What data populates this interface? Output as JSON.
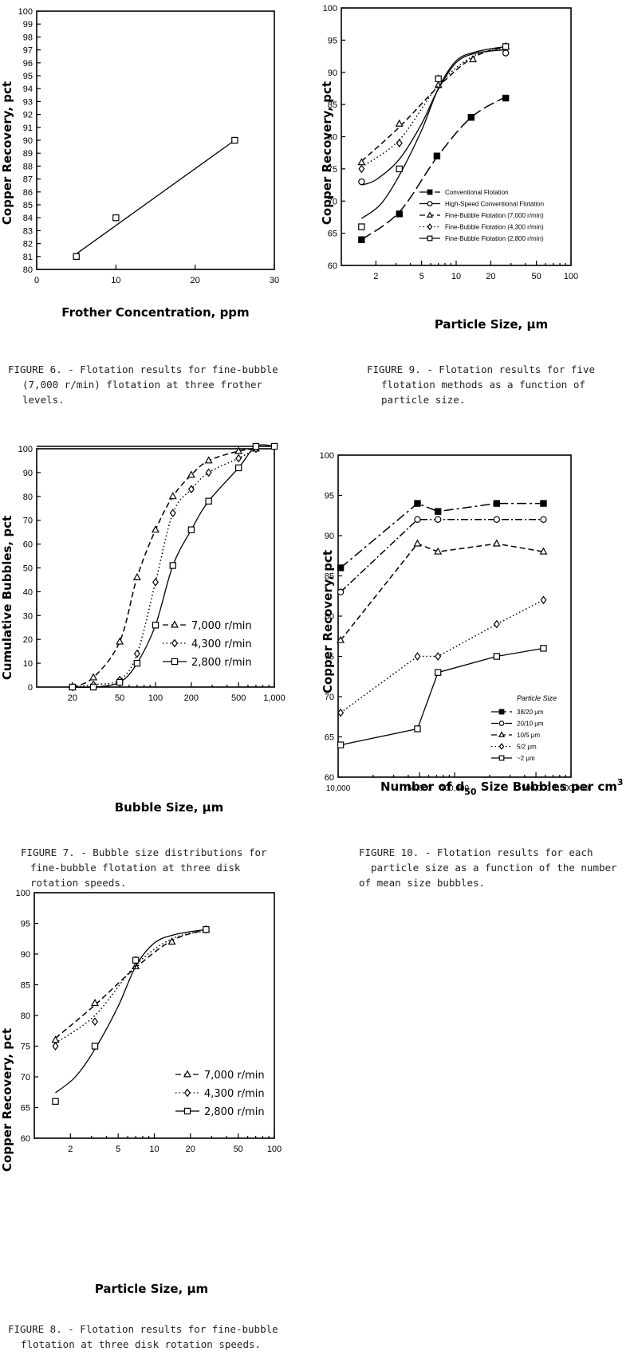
{
  "colors": {
    "ink": "#000000",
    "caption": "#222222",
    "background": "#ffffff"
  },
  "captions": {
    "fig6": [
      "FIGURE 6. - Flotation results for fine-bubble",
      "(7,000 r/min) flotation at three frother",
      "levels."
    ],
    "fig9": [
      "FIGURE 9. - Flotation results for five",
      "flotation methods as a function of",
      "particle size."
    ],
    "fig7": [
      "FIGURE 7. - Bubble size distributions for",
      "fine-bubble flotation at three disk",
      "rotation speeds."
    ],
    "fig10": [
      "FIGURE 10. - Flotation results for each",
      "particle size as a function of the number",
      "of mean size bubbles."
    ],
    "fig8": [
      "FIGURE 8. - Flotation results for fine-bubble",
      "flotation at three disk rotation speeds."
    ]
  },
  "chart_data": [
    {
      "id": "fig6",
      "type": "line",
      "xlabel": "Frother Concentration, ppm",
      "ylabel": "Copper Recovery, pct",
      "xlim": [
        0,
        30
      ],
      "ylim": [
        80,
        100
      ],
      "xticks": [
        0,
        10,
        20,
        30
      ],
      "xtick_labels": [
        "0",
        "10",
        "20",
        "30"
      ],
      "yticks": [
        80,
        81,
        82,
        83,
        84,
        85,
        86,
        87,
        88,
        89,
        90,
        91,
        92,
        93,
        94,
        95,
        96,
        97,
        98,
        99,
        100
      ],
      "ytick_labels": [
        "80",
        "81",
        "82",
        "83",
        "84",
        "85",
        "86",
        "87",
        "88",
        "89",
        "90",
        "91",
        "92",
        "93",
        "94",
        "95",
        "96",
        "97",
        "98",
        "99",
        "100"
      ],
      "series": [
        {
          "marker": "square-open",
          "line": "solid",
          "x": [
            5,
            10,
            25
          ],
          "y": [
            81,
            84,
            90
          ],
          "fit": [
            [
              5,
              81.2
            ],
            [
              25,
              90
            ]
          ]
        }
      ]
    },
    {
      "id": "fig9",
      "type": "line",
      "xscale": "log",
      "xlabel": "Particle Size, μm",
      "ylabel": "Copper Recovery, pct",
      "xlim": [
        1,
        100
      ],
      "ylim": [
        60,
        100
      ],
      "xticks": [
        2,
        5,
        10,
        20,
        50,
        100
      ],
      "xtick_labels": [
        "2",
        "5",
        "10",
        "20",
        "50",
        "100"
      ],
      "yticks": [
        60,
        65,
        70,
        75,
        80,
        85,
        90,
        95,
        100
      ],
      "ytick_labels": [
        "60",
        "65",
        "70",
        "75",
        "80",
        "85",
        "90",
        "95",
        "100"
      ],
      "legend": "bottom-right",
      "series": [
        {
          "name": "Conventional Flotation",
          "marker": "square-filled",
          "line": "longdash",
          "x": [
            1.5,
            3.2,
            6.8,
            13.5,
            27
          ],
          "y": [
            64,
            68,
            77,
            83,
            86
          ],
          "curve": [
            [
              1.5,
              64
            ],
            [
              3.2,
              68.3
            ],
            [
              6.8,
              76.8
            ],
            [
              13.5,
              83
            ],
            [
              27,
              86.2
            ]
          ]
        },
        {
          "name": "High-Speed Conventional Flotation",
          "marker": "circle-open",
          "line": "solid",
          "x": [
            1.5,
            27
          ],
          "y": [
            73,
            93
          ],
          "curve": [
            [
              1.5,
              72.5
            ],
            [
              2,
              73.3
            ],
            [
              3.2,
              76.5
            ],
            [
              5,
              82
            ],
            [
              6.8,
              87
            ],
            [
              10,
              91.5
            ],
            [
              15,
              93
            ],
            [
              27,
              93.5
            ]
          ]
        },
        {
          "name": "Fine-Bubble Flotation (7,000 r/min)",
          "marker": "triangle-open",
          "line": "dash",
          "x": [
            1.5,
            3.2,
            7,
            14,
            27
          ],
          "y": [
            76,
            82,
            88,
            92,
            94
          ],
          "curve": [
            [
              1.5,
              76.2
            ],
            [
              3.2,
              81.5
            ],
            [
              7,
              87.8
            ],
            [
              14,
              92.3
            ],
            [
              27,
              94
            ]
          ]
        },
        {
          "name": "Fine-Bubble Flotation (4,300 r/min)",
          "marker": "diamond-open",
          "line": "dot",
          "x": [
            1.5,
            3.2,
            7,
            27
          ],
          "y": [
            75,
            79,
            89,
            94
          ],
          "curve": [
            [
              1.5,
              75.3
            ],
            [
              3.2,
              79.5
            ],
            [
              7,
              88
            ],
            [
              14,
              92.5
            ],
            [
              27,
              93.8
            ]
          ]
        },
        {
          "name": "Fine-Bubble Flotation (2,800 r/min)",
          "marker": "square-open",
          "line": "solid",
          "x": [
            1.5,
            3.2,
            7,
            27
          ],
          "y": [
            66,
            75,
            89,
            94
          ],
          "curve": [
            [
              1.5,
              67.3
            ],
            [
              2.2,
              69.5
            ],
            [
              3.2,
              74
            ],
            [
              5,
              81
            ],
            [
              7,
              87.5
            ],
            [
              10,
              91.8
            ],
            [
              15,
              93.2
            ],
            [
              27,
              94
            ]
          ]
        }
      ]
    },
    {
      "id": "fig7",
      "type": "line",
      "xscale": "log",
      "xlabel": "Bubble Size, μm",
      "ylabel": "Cumulative Bubbles, pct",
      "xlim": [
        10,
        1000
      ],
      "ylim": [
        0,
        100
      ],
      "xticks": [
        20,
        50,
        100,
        200,
        500,
        1000
      ],
      "xtick_labels": [
        "20",
        "50",
        "100",
        "200",
        "500",
        "1,000"
      ],
      "yticks": [
        0,
        10,
        20,
        30,
        40,
        50,
        60,
        70,
        80,
        90,
        100
      ],
      "ytick_labels": [
        "0",
        "10",
        "20",
        "30",
        "40",
        "50",
        "60",
        "70",
        "80",
        "90",
        "100"
      ],
      "legend": "bottom-right",
      "series": [
        {
          "name": "7,000 r/min",
          "marker": "triangle-open",
          "line": "dash",
          "x": [
            20,
            30,
            50,
            70,
            100,
            140,
            200,
            280,
            500,
            700
          ],
          "y": [
            0,
            4,
            19,
            46,
            66,
            80,
            89,
            95,
            99,
            100
          ]
        },
        {
          "name": "4,300 r/min",
          "marker": "diamond-open",
          "line": "dot",
          "x": [
            20,
            30,
            50,
            70,
            100,
            140,
            200,
            280,
            500,
            700
          ],
          "y": [
            0,
            1,
            3,
            14,
            44,
            73,
            83,
            90,
            96,
            100
          ]
        },
        {
          "name": "2,800 r/min",
          "marker": "square-open",
          "line": "solid",
          "x": [
            20,
            30,
            50,
            70,
            100,
            140,
            200,
            280,
            500,
            700,
            1000
          ],
          "y": [
            0,
            0,
            2,
            10,
            26,
            51,
            66,
            78,
            92,
            101,
            101
          ]
        }
      ]
    },
    {
      "id": "fig10",
      "type": "line",
      "xscale": "log",
      "xlabel": "Number of d",
      "xlabel_sub": "50",
      "xlabel_rest": " Size Bubbles per cm",
      "xlabel_sup": "3",
      "ylabel": "Copper Recovery, pct",
      "xlim": [
        10000,
        1000000
      ],
      "ylim": [
        60,
        100
      ],
      "xticks": [
        10000,
        50000,
        100000,
        500000,
        1000000
      ],
      "xtick_labels": [
        "10,000",
        "50,000",
        "100,000",
        "500,000",
        "1,000,000"
      ],
      "yticks": [
        60,
        65,
        70,
        75,
        80,
        85,
        90,
        95,
        100
      ],
      "ytick_labels": [
        "60",
        "65",
        "70",
        "75",
        "80",
        "85",
        "90",
        "95",
        "100"
      ],
      "legend": "bottom-right",
      "legend_title": "Particle Size",
      "series": [
        {
          "name": "38/20 μm",
          "marker": "square-filled",
          "line": "dashdot",
          "x": [
            10500,
            48000,
            72000,
            230000,
            580000
          ],
          "y": [
            86,
            94,
            93,
            94,
            94
          ]
        },
        {
          "name": "20/10 μm",
          "marker": "circle-open",
          "line": "dashdot2",
          "x": [
            10500,
            48000,
            72000,
            230000,
            580000
          ],
          "y": [
            83,
            92,
            92,
            92,
            92
          ]
        },
        {
          "name": "10/5 μm",
          "marker": "triangle-open",
          "line": "dash",
          "x": [
            10500,
            48000,
            72000,
            230000,
            580000
          ],
          "y": [
            77,
            89,
            88,
            89,
            88
          ]
        },
        {
          "name": "5/2 μm",
          "marker": "diamond-open",
          "line": "dot",
          "x": [
            10500,
            48000,
            72000,
            230000,
            580000
          ],
          "y": [
            68,
            75,
            75,
            79,
            82
          ]
        },
        {
          "name": "~2 μm",
          "marker": "square-open",
          "line": "solid",
          "x": [
            10500,
            48000,
            72000,
            230000,
            580000
          ],
          "y": [
            64,
            66,
            73,
            75,
            76
          ]
        }
      ]
    },
    {
      "id": "fig8",
      "type": "line",
      "xscale": "log",
      "xlabel": "Particle Size, μm",
      "ylabel": "Copper Recovery, pct",
      "xlim": [
        1,
        100
      ],
      "ylim": [
        60,
        100
      ],
      "xticks": [
        2,
        5,
        10,
        20,
        50,
        100
      ],
      "xtick_labels": [
        "2",
        "5",
        "10",
        "20",
        "50",
        "100"
      ],
      "yticks": [
        60,
        65,
        70,
        75,
        80,
        85,
        90,
        95,
        100
      ],
      "ytick_labels": [
        "60",
        "65",
        "70",
        "75",
        "80",
        "85",
        "90",
        "95",
        "100"
      ],
      "legend": "bottom-right",
      "series": [
        {
          "name": "7,000 r/min",
          "marker": "triangle-open",
          "line": "dash",
          "x": [
            1.5,
            3.2,
            7,
            14,
            27
          ],
          "y": [
            76,
            82,
            88,
            92,
            94
          ],
          "curve": [
            [
              1.5,
              76.3
            ],
            [
              3.2,
              81.7
            ],
            [
              7,
              87.8
            ],
            [
              14,
              92.2
            ],
            [
              27,
              94
            ]
          ]
        },
        {
          "name": "4,300 r/min",
          "marker": "diamond-open",
          "line": "dot",
          "x": [
            1.5,
            3.2,
            7,
            27
          ],
          "y": [
            75,
            79,
            89,
            94
          ],
          "curve": [
            [
              1.5,
              75.5
            ],
            [
              3.2,
              80
            ],
            [
              7,
              88.2
            ],
            [
              14,
              92.5
            ],
            [
              27,
              93.8
            ]
          ]
        },
        {
          "name": "2,800 r/min",
          "marker": "square-open",
          "line": "solid",
          "x": [
            1.5,
            3.2,
            7,
            27
          ],
          "y": [
            66,
            75,
            89,
            94
          ],
          "curve": [
            [
              1.5,
              67.4
            ],
            [
              2.2,
              70
            ],
            [
              3.2,
              74.5
            ],
            [
              5,
              81.5
            ],
            [
              7,
              88
            ],
            [
              10,
              91.8
            ],
            [
              15,
              93.2
            ],
            [
              27,
              94
            ]
          ]
        }
      ]
    }
  ]
}
